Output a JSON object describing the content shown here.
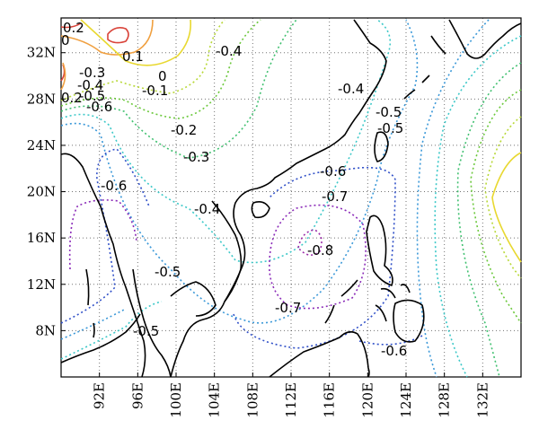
{
  "map": {
    "x_ticks": [
      "92E",
      "96E",
      "100E",
      "104E",
      "108E",
      "112E",
      "116E",
      "120E",
      "124E",
      "128E",
      "132E"
    ],
    "y_ticks": [
      "32N",
      "28N",
      "24N",
      "20N",
      "16N",
      "12N",
      "8N"
    ],
    "contour_labels": [
      {
        "id": "l1",
        "text": "0.2"
      },
      {
        "id": "l2",
        "text": "0"
      },
      {
        "id": "l3",
        "text": "0.1"
      },
      {
        "id": "l4",
        "text": "-0.3"
      },
      {
        "id": "l5",
        "text": "0"
      },
      {
        "id": "l6",
        "text": "-0.4"
      },
      {
        "id": "l7",
        "text": "0.2"
      },
      {
        "id": "l8",
        "text": "-0.5"
      },
      {
        "id": "l9",
        "text": "-0.6"
      },
      {
        "id": "l10",
        "text": "-0.1"
      },
      {
        "id": "l11",
        "text": "-0.4"
      },
      {
        "id": "l12",
        "text": "-0.4"
      },
      {
        "id": "l13",
        "text": "-0.2"
      },
      {
        "id": "l14",
        "text": "-0.5"
      },
      {
        "id": "l15",
        "text": "-0.5"
      },
      {
        "id": "l16",
        "text": "-0.3"
      },
      {
        "id": "l17",
        "text": "-0.6"
      },
      {
        "id": "l18",
        "text": "-0.6"
      },
      {
        "id": "l19",
        "text": "-0.7"
      },
      {
        "id": "l20",
        "text": "-0.4"
      },
      {
        "id": "l21",
        "text": "-0.8"
      },
      {
        "id": "l22",
        "text": "-0.5"
      },
      {
        "id": "l23",
        "text": "-0.7"
      },
      {
        "id": "l24",
        "text": "-0.5"
      },
      {
        "id": "l25",
        "text": "-0.6"
      }
    ],
    "colors": {
      "c_pos02": "#d9443a",
      "c_pos01": "#f0a040",
      "c_zero": "#e8d830",
      "c_m01": "#b8d838",
      "c_m02": "#6cc83c",
      "c_m03": "#40c070",
      "c_m04": "#3cc8c8",
      "c_m05": "#3a98d8",
      "c_m06": "#3050c8",
      "c_m07": "#8a2ab8",
      "c_m08": "#9a2aa8",
      "coast": "#000000",
      "frame": "#000000"
    }
  }
}
